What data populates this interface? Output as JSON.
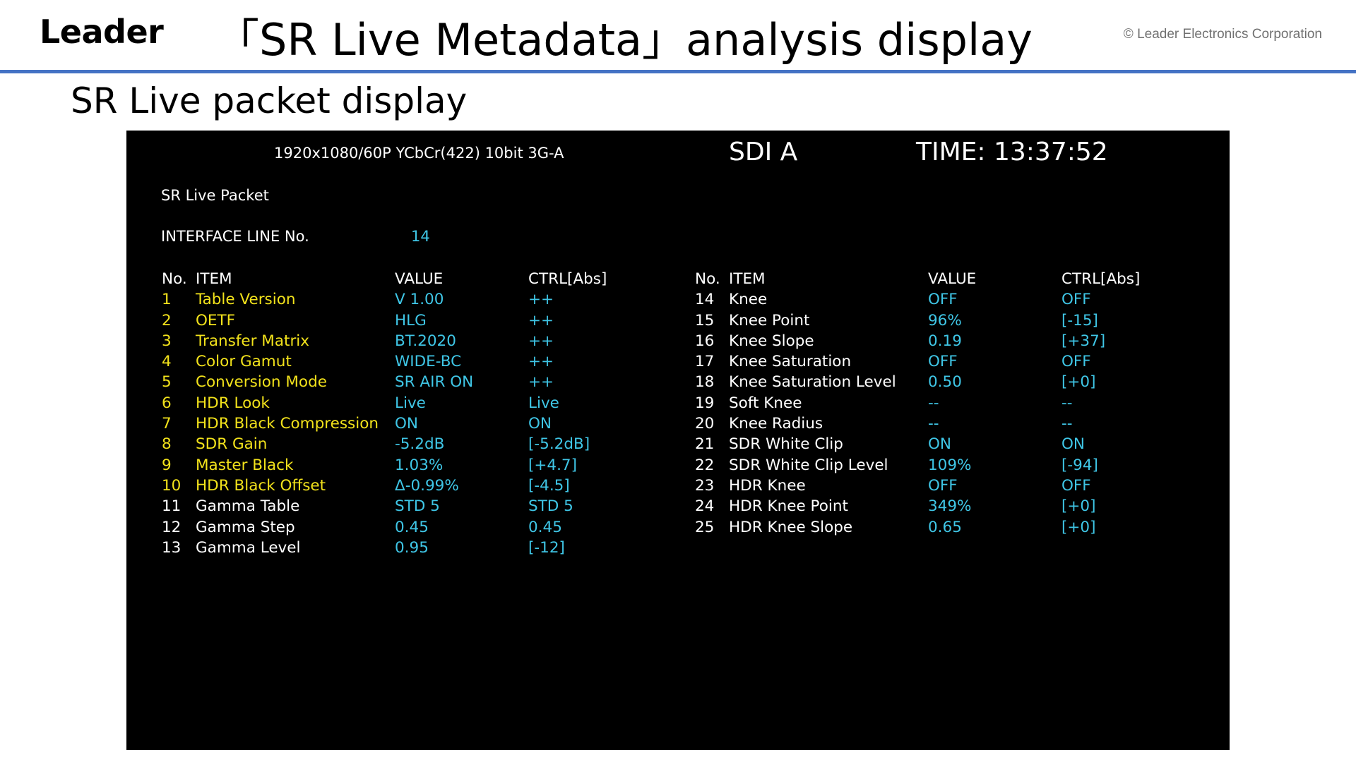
{
  "header": {
    "logo": "Leader",
    "title": "「SR Live Metadata」analysis display",
    "copyright": "© Leader Electronics Corporation"
  },
  "section_title": "SR Live packet display",
  "colors": {
    "rule": "#4472c4",
    "screen_bg": "#000000",
    "highlight_item": "#f2e21b",
    "value": "#3fc6e6",
    "text": "#ffffff"
  },
  "screen": {
    "format": "1920x1080/60P YCbCr(422) 10bit 3G-A",
    "input": "SDI A",
    "time": "TIME: 13:37:52",
    "packet_title": "SR Live Packet",
    "interface_line_label": "INTERFACE LINE No.",
    "interface_line_value": "14",
    "columns": {
      "no": "No.",
      "item": "ITEM",
      "value": "VALUE",
      "ctrl": "CTRL[Abs]"
    },
    "left_rows": [
      {
        "no": "1",
        "item": "Table Version",
        "value": "V 1.00",
        "ctrl": "++",
        "highlight": true
      },
      {
        "no": "2",
        "item": "OETF",
        "value": "HLG",
        "ctrl": "++",
        "highlight": true
      },
      {
        "no": "3",
        "item": "Transfer Matrix",
        "value": "BT.2020",
        "ctrl": "++",
        "highlight": true
      },
      {
        "no": "4",
        "item": "Color Gamut",
        "value": "WIDE-BC",
        "ctrl": "++",
        "highlight": true
      },
      {
        "no": "5",
        "item": "Conversion Mode",
        "value": "SR AIR ON",
        "ctrl": "++",
        "highlight": true
      },
      {
        "no": "6",
        "item": "HDR Look",
        "value": "Live",
        "ctrl": "Live",
        "highlight": true
      },
      {
        "no": "7",
        "item": "HDR Black Compression",
        "value": "ON",
        "ctrl": "ON",
        "highlight": true
      },
      {
        "no": "8",
        "item": "SDR Gain",
        "value": "-5.2dB",
        "ctrl": "[-5.2dB]",
        "highlight": true
      },
      {
        "no": "9",
        "item": "Master Black",
        "value": "1.03%",
        "ctrl": "[+4.7]",
        "highlight": true
      },
      {
        "no": "10",
        "item": "HDR Black Offset",
        "value": "Δ-0.99%",
        "ctrl": "[-4.5]",
        "highlight": true
      },
      {
        "no": "11",
        "item": "Gamma Table",
        "value": "STD 5",
        "ctrl": "STD 5",
        "highlight": false
      },
      {
        "no": "12",
        "item": "Gamma Step",
        "value": "0.45",
        "ctrl": "0.45",
        "highlight": false
      },
      {
        "no": "13",
        "item": "Gamma Level",
        "value": "0.95",
        "ctrl": "[-12]",
        "highlight": false
      }
    ],
    "right_rows": [
      {
        "no": "14",
        "item": "Knee",
        "value": "OFF",
        "ctrl": "OFF",
        "highlight": false
      },
      {
        "no": "15",
        "item": "Knee Point",
        "value": "96%",
        "ctrl": "[-15]",
        "highlight": false
      },
      {
        "no": "16",
        "item": "Knee Slope",
        "value": "0.19",
        "ctrl": "[+37]",
        "highlight": false
      },
      {
        "no": "17",
        "item": "Knee Saturation",
        "value": "OFF",
        "ctrl": "OFF",
        "highlight": false
      },
      {
        "no": "18",
        "item": "Knee Saturation Level",
        "value": "0.50",
        "ctrl": "[+0]",
        "highlight": false
      },
      {
        "no": "19",
        "item": "Soft Knee",
        "value": "--",
        "ctrl": "--",
        "highlight": false
      },
      {
        "no": "20",
        "item": "Knee Radius",
        "value": "--",
        "ctrl": "--",
        "highlight": false
      },
      {
        "no": "21",
        "item": "SDR White Clip",
        "value": "ON",
        "ctrl": "ON",
        "highlight": false
      },
      {
        "no": "22",
        "item": "SDR White Clip Level",
        "value": "109%",
        "ctrl": "[-94]",
        "highlight": false
      },
      {
        "no": "23",
        "item": "HDR Knee",
        "value": "OFF",
        "ctrl": "OFF",
        "highlight": false
      },
      {
        "no": "24",
        "item": "HDR Knee Point",
        "value": "349%",
        "ctrl": "[+0]",
        "highlight": false
      },
      {
        "no": "25",
        "item": "HDR Knee Slope",
        "value": "0.65",
        "ctrl": "[+0]",
        "highlight": false
      }
    ]
  }
}
